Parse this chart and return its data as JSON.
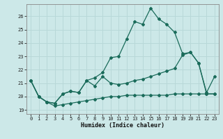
{
  "xlabel": "Humidex (Indice chaleur)",
  "bg_color": "#cce8e8",
  "line_color": "#1a6b5a",
  "grid_color": "#b8d8d8",
  "xlim": [
    -0.5,
    23.5
  ],
  "ylim": [
    18.7,
    26.9
  ],
  "yticks": [
    19,
    20,
    21,
    22,
    23,
    24,
    25,
    26
  ],
  "xticks": [
    0,
    1,
    2,
    3,
    4,
    5,
    6,
    7,
    8,
    9,
    10,
    11,
    12,
    13,
    14,
    15,
    16,
    17,
    18,
    19,
    20,
    21,
    22,
    23
  ],
  "series1_x": [
    0,
    1,
    2,
    3,
    4,
    5,
    6,
    7,
    8,
    9,
    10,
    11,
    12,
    13,
    14,
    15,
    16,
    17,
    18,
    19,
    20,
    21,
    22,
    23
  ],
  "series1_y": [
    21.2,
    20.0,
    19.6,
    19.5,
    20.2,
    20.4,
    20.3,
    21.2,
    21.4,
    21.8,
    22.9,
    23.0,
    24.3,
    25.6,
    25.4,
    26.6,
    25.8,
    25.4,
    24.8,
    23.2,
    23.3,
    22.5,
    20.3,
    21.5
  ],
  "series2_x": [
    0,
    1,
    2,
    3,
    4,
    5,
    6,
    7,
    8,
    9,
    10,
    11,
    12,
    13,
    14,
    15,
    16,
    17,
    18,
    19,
    20,
    21,
    22,
    23
  ],
  "series2_y": [
    21.2,
    20.0,
    19.6,
    19.5,
    20.2,
    20.4,
    20.3,
    21.2,
    20.8,
    21.5,
    21.0,
    20.9,
    21.0,
    21.2,
    21.3,
    21.5,
    21.7,
    21.9,
    22.1,
    23.1,
    23.3,
    22.5,
    20.2,
    20.2
  ],
  "series3_x": [
    0,
    1,
    2,
    3,
    4,
    5,
    6,
    7,
    8,
    9,
    10,
    11,
    12,
    13,
    14,
    15,
    16,
    17,
    18,
    19,
    20,
    21,
    22,
    23
  ],
  "series3_y": [
    21.2,
    20.0,
    19.6,
    19.3,
    19.4,
    19.5,
    19.6,
    19.7,
    19.8,
    19.9,
    20.0,
    20.0,
    20.1,
    20.1,
    20.1,
    20.1,
    20.1,
    20.1,
    20.2,
    20.2,
    20.2,
    20.2,
    20.2,
    20.2
  ]
}
